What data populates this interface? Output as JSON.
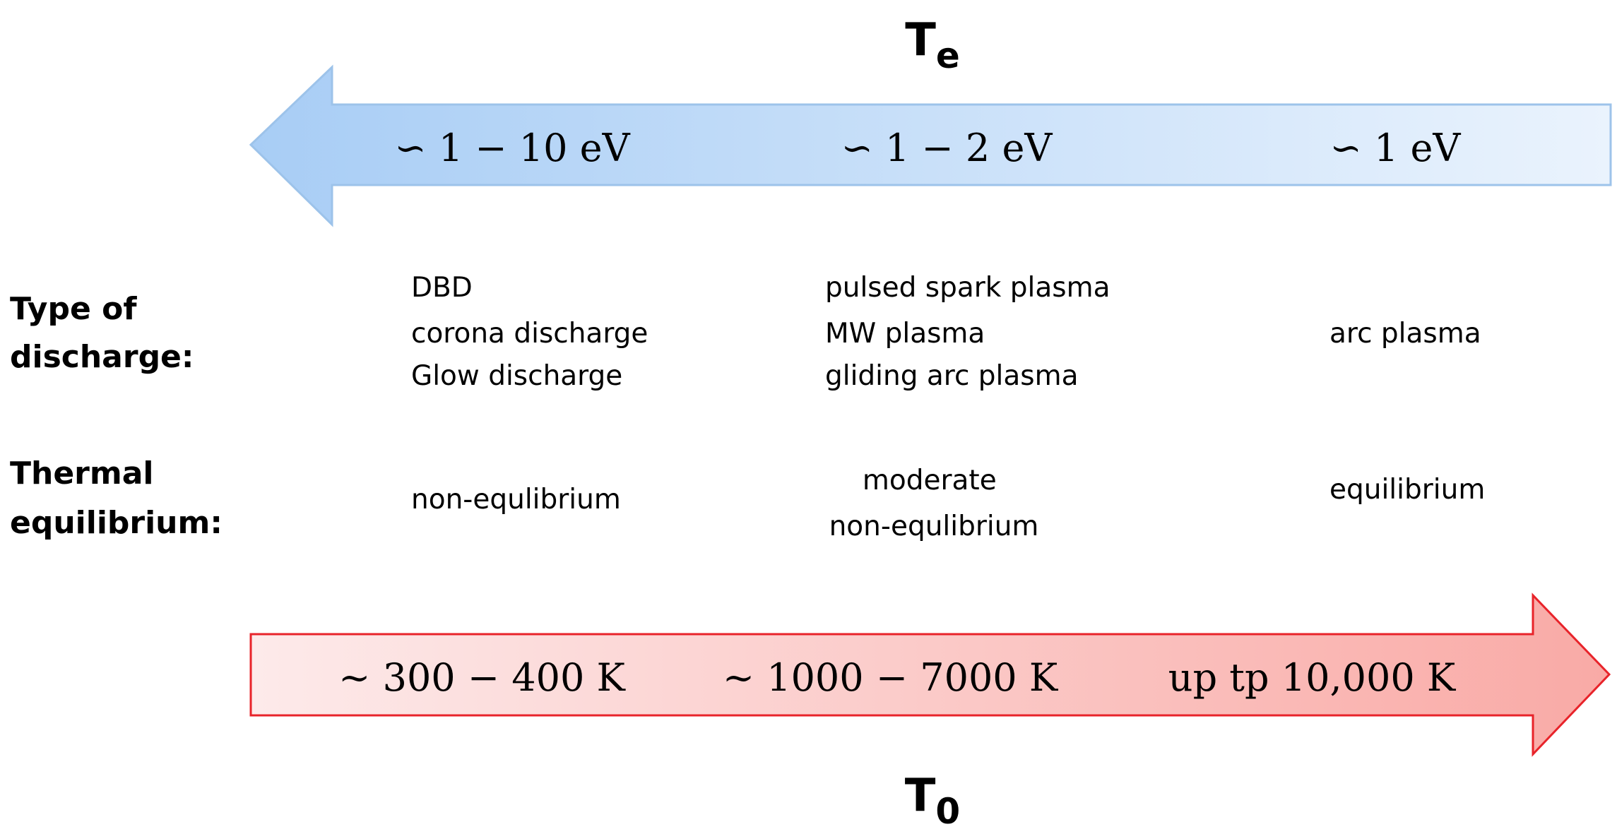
{
  "electron_temperature": {
    "symbol": "T",
    "subscript": "e",
    "labels": [
      "∽ 1 − 10 eV",
      "∽ 1 − 2 eV",
      "∽ 1 eV"
    ],
    "fill_left": "#a8cdf5",
    "fill_right": "#eaf3fd",
    "stroke": "#9dc3ea"
  },
  "type_of_discharge": {
    "label_lines": [
      "Type of",
      "discharge:"
    ],
    "columns": [
      [
        "DBD",
        "corona discharge",
        "Glow discharge"
      ],
      [
        "pulsed spark plasma",
        "MW plasma",
        "gliding arc plasma"
      ],
      [
        "arc plasma"
      ]
    ]
  },
  "thermal_equilibrium": {
    "label_lines": [
      "Thermal",
      "equilibrium:"
    ],
    "columns": [
      [
        "non-equlibrium"
      ],
      [
        "moderate",
        "non-equlibrium"
      ],
      [
        "equilibrium"
      ]
    ]
  },
  "gas_temperature": {
    "symbol": "T",
    "subscript": "0",
    "labels": [
      "~ 300 − 400 K",
      "~ 1000 − 7000 K",
      "up tp 10,000 K"
    ],
    "fill_left": "#fdeaea",
    "fill_right": "#f9aaa6",
    "stroke": "#e8232a"
  }
}
